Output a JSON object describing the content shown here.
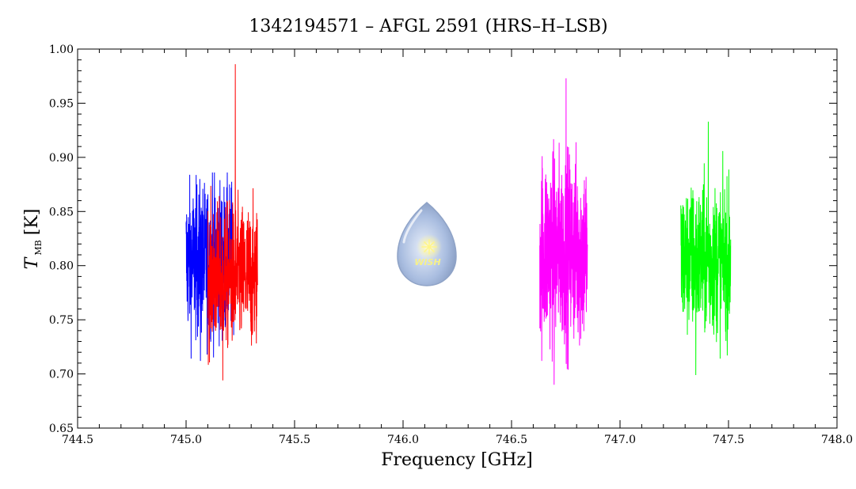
{
  "chart_data": {
    "type": "line",
    "title": "1342194571 – AFGL 2591 (HRS–H–LSB)",
    "xlabel": "Frequency [GHz]",
    "ylabel": {
      "symbol": "T",
      "subscript": "MB",
      "unit": "[K]"
    },
    "xlim": [
      744.5,
      748.0
    ],
    "ylim": [
      0.65,
      1.0
    ],
    "x_ticks": [
      744.5,
      745.0,
      745.5,
      746.0,
      746.5,
      747.0,
      747.5,
      748.0
    ],
    "x_tick_labels": [
      "744.5",
      "745.0",
      "745.5",
      "746.0",
      "746.5",
      "747.0",
      "747.5",
      "748.0"
    ],
    "y_ticks": [
      0.65,
      0.7,
      0.75,
      0.8,
      0.85,
      0.9,
      0.95,
      1.0
    ],
    "y_tick_labels": [
      "0.65",
      "0.70",
      "0.75",
      "0.80",
      "0.85",
      "0.90",
      "0.95",
      "1.00"
    ],
    "grid": false,
    "logo_text": "WISH",
    "series": [
      {
        "color": "#0000ff",
        "x_start": 745.0,
        "x_end": 745.22,
        "baseline": 0.805,
        "noise": 0.035,
        "y_min": 0.712,
        "y_max": 0.886
      },
      {
        "color": "#ff0000",
        "x_start": 745.1,
        "x_end": 745.33,
        "baseline": 0.79,
        "noise": 0.033,
        "y_min": 0.694,
        "y_max": 0.986
      },
      {
        "color": "#ff00ff",
        "x_start": 746.63,
        "x_end": 746.85,
        "baseline": 0.815,
        "noise": 0.045,
        "y_min": 0.69,
        "y_max": 0.973
      },
      {
        "color": "#00ff00",
        "x_start": 747.28,
        "x_end": 747.51,
        "baseline": 0.805,
        "noise": 0.035,
        "y_min": 0.699,
        "y_max": 0.933
      }
    ]
  }
}
